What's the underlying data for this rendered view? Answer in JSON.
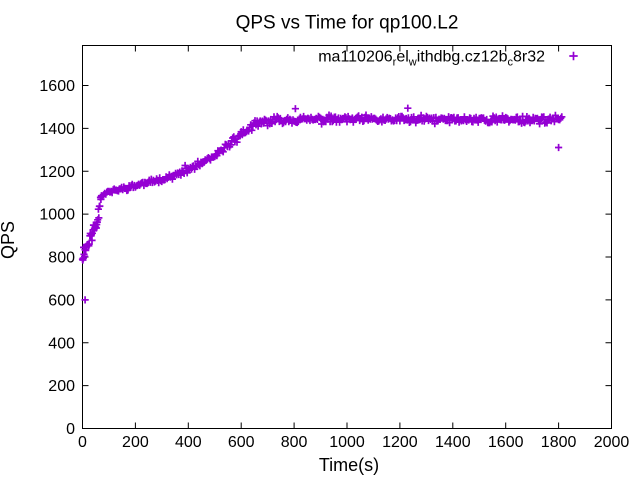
{
  "window": {
    "background": "#ffffff"
  },
  "chart_data": {
    "type": "scatter",
    "title": "QPS vs Time for qp100.L2",
    "xlabel": "Time(s)",
    "ylabel": "QPS",
    "xlim": [
      0,
      2000
    ],
    "ylim": [
      0,
      1786
    ],
    "x_ticks": [
      0,
      200,
      400,
      600,
      800,
      1000,
      1200,
      1400,
      1600,
      1800,
      2000
    ],
    "y_ticks": [
      0,
      200,
      400,
      600,
      800,
      1000,
      1200,
      1400,
      1600
    ],
    "grid": "off",
    "border_color": "#000000",
    "legend": {
      "position": "top-right-inside",
      "marker": "plus",
      "color": "#9400D3",
      "label_plain": "ma110206_rel_withdbg.cz12b_c8r32",
      "segments": [
        {
          "t": "ma110206"
        },
        {
          "t": "r",
          "sub": true
        },
        {
          "t": "el"
        },
        {
          "t": "w",
          "sub": true
        },
        {
          "t": "ithdbg.cz12b"
        },
        {
          "t": "c",
          "sub": true
        },
        {
          "t": "8r32"
        }
      ]
    },
    "series": [
      {
        "name": "ma110206_rel_withdbg.cz12b_c8r32",
        "marker": "plus",
        "color": "#9400D3",
        "sample_interval_s": 4,
        "t_end": 1815,
        "extra_density_below_t": 70,
        "trend_keypoints": [
          [
            0,
            810
          ],
          [
            20,
            865
          ],
          [
            40,
            920
          ],
          [
            55,
            965
          ],
          [
            62,
            1030
          ],
          [
            70,
            1088
          ],
          [
            90,
            1100
          ],
          [
            150,
            1118
          ],
          [
            250,
            1148
          ],
          [
            350,
            1180
          ],
          [
            420,
            1218
          ],
          [
            500,
            1268
          ],
          [
            550,
            1325
          ],
          [
            600,
            1372
          ],
          [
            650,
            1415
          ],
          [
            700,
            1432
          ],
          [
            760,
            1441
          ],
          [
            1815,
            1441
          ]
        ],
        "noise_bands": [
          {
            "t_max": 60,
            "amp": 42
          },
          {
            "t_max": 75,
            "amp": 18
          },
          {
            "t_max": 380,
            "amp": 14
          },
          {
            "t_max": 460,
            "amp": 28
          },
          {
            "t_max": 545,
            "amp": 16
          },
          {
            "t_max": 700,
            "amp": 24
          },
          {
            "t_max": 1815,
            "amp": 22
          }
        ],
        "outliers": [
          [
            3,
            795
          ],
          [
            10,
            600
          ],
          [
            805,
            1492
          ],
          [
            1230,
            1494
          ],
          [
            1800,
            1311
          ]
        ],
        "prng_seed": 11
      }
    ]
  }
}
